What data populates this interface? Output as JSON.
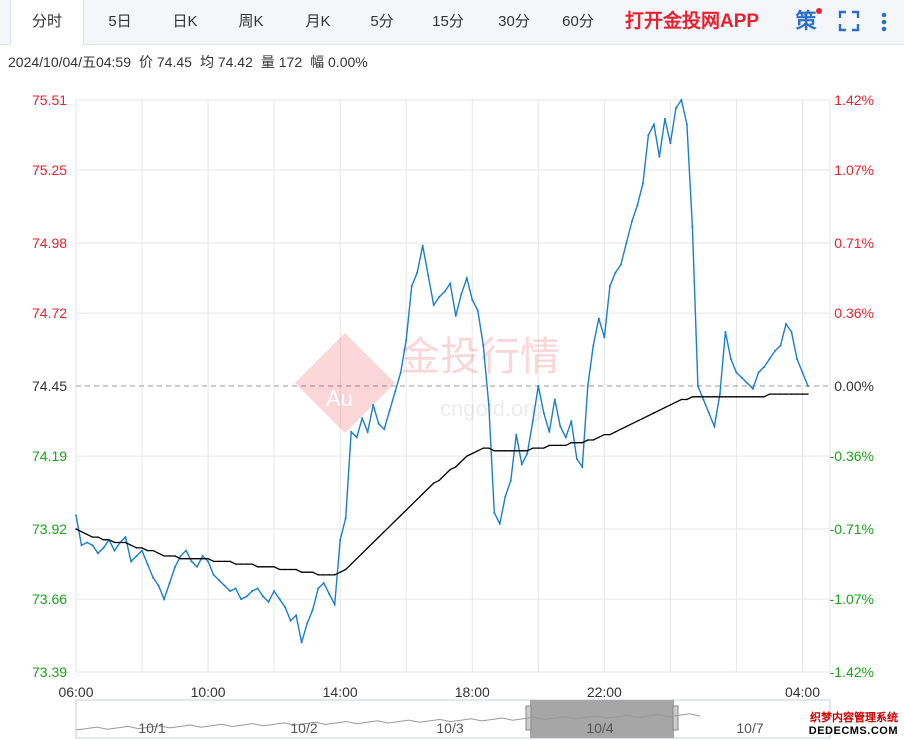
{
  "tabs": [
    {
      "label": "分时",
      "active": true
    },
    {
      "label": "5日"
    },
    {
      "label": "日K"
    },
    {
      "label": "周K"
    },
    {
      "label": "月K"
    },
    {
      "label": "5分"
    },
    {
      "label": "15分"
    },
    {
      "label": "30分"
    },
    {
      "label": "60分"
    }
  ],
  "promo": "打开金投网APP",
  "ce_label": "策",
  "info": {
    "datetime": "2024/10/04/五04:59",
    "price": "价 74.45",
    "avg": "均 74.42",
    "volume": "量 172",
    "change": "幅 0.00%"
  },
  "watermark": {
    "brand": "金投行情",
    "badge": "Au",
    "site": "cngold.org"
  },
  "corner": {
    "line1": "织梦内容管理系统",
    "line2": "DEDECMS.COM"
  },
  "colors": {
    "up": "#e8212e",
    "down": "#1aa31a",
    "price": "#1a7fc8",
    "avg": "#000000",
    "grid": "#e6e6e6"
  },
  "chart_data": {
    "type": "line",
    "ylim": [
      73.39,
      75.51
    ],
    "base": 74.45,
    "y_ticks": [
      75.51,
      75.25,
      74.98,
      74.72,
      74.45,
      74.19,
      73.92,
      73.66,
      73.39
    ],
    "pct_ticks": [
      "1.42%",
      "1.07%",
      "0.71%",
      "0.36%",
      "0.00%",
      "-0.36%",
      "-0.71%",
      "-1.07%",
      "-1.42%"
    ],
    "x_ticks": [
      "06:00",
      "10:00",
      "14:00",
      "18:00",
      "22:00",
      "04:00"
    ],
    "x_tick_index": [
      0,
      24,
      48,
      72,
      96,
      132
    ],
    "total_points": 138,
    "series": [
      {
        "name": "价",
        "values": [
          73.97,
          73.86,
          73.87,
          73.86,
          73.83,
          73.85,
          73.88,
          73.84,
          73.87,
          73.89,
          73.8,
          73.82,
          73.84,
          73.79,
          73.74,
          73.71,
          73.66,
          73.72,
          73.78,
          73.82,
          73.84,
          73.8,
          73.78,
          73.82,
          73.8,
          73.75,
          73.73,
          73.71,
          73.69,
          73.7,
          73.66,
          73.67,
          73.69,
          73.7,
          73.67,
          73.65,
          73.69,
          73.66,
          73.63,
          73.58,
          73.6,
          73.5,
          73.57,
          73.62,
          73.7,
          73.72,
          73.68,
          73.64,
          73.88,
          73.96,
          74.28,
          74.26,
          74.33,
          74.28,
          74.38,
          74.31,
          74.29,
          74.36,
          74.43,
          74.5,
          74.62,
          74.82,
          74.87,
          74.97,
          74.86,
          74.75,
          74.78,
          74.8,
          74.83,
          74.71,
          74.79,
          74.85,
          74.77,
          74.73,
          74.6,
          74.38,
          73.98,
          73.94,
          74.04,
          74.1,
          74.27,
          74.16,
          74.2,
          74.32,
          74.45,
          74.35,
          74.28,
          74.4,
          74.3,
          74.26,
          74.32,
          74.18,
          74.15,
          74.45,
          74.6,
          74.7,
          74.63,
          74.82,
          74.87,
          74.9,
          74.98,
          75.06,
          75.12,
          75.2,
          75.38,
          75.42,
          75.3,
          75.44,
          75.35,
          75.48,
          75.51,
          75.42,
          75.04,
          74.45,
          74.4,
          74.35,
          74.3,
          74.42,
          74.65,
          74.55,
          74.5,
          74.48,
          74.46,
          74.44,
          74.5,
          74.52,
          74.55,
          74.58,
          74.6,
          74.68,
          74.65,
          74.55,
          74.5,
          74.45
        ]
      },
      {
        "name": "均",
        "values": [
          73.92,
          73.91,
          73.9,
          73.89,
          73.89,
          73.88,
          73.88,
          73.87,
          73.87,
          73.87,
          73.86,
          73.85,
          73.85,
          73.84,
          73.84,
          73.83,
          73.82,
          73.82,
          73.82,
          73.81,
          73.81,
          73.81,
          73.81,
          73.81,
          73.81,
          73.8,
          73.8,
          73.8,
          73.8,
          73.79,
          73.79,
          73.79,
          73.79,
          73.78,
          73.78,
          73.78,
          73.78,
          73.77,
          73.77,
          73.77,
          73.77,
          73.76,
          73.76,
          73.76,
          73.75,
          73.75,
          73.75,
          73.75,
          73.76,
          73.77,
          73.79,
          73.81,
          73.83,
          73.85,
          73.87,
          73.89,
          73.91,
          73.93,
          73.95,
          73.97,
          73.99,
          74.01,
          74.03,
          74.05,
          74.07,
          74.09,
          74.1,
          74.12,
          74.14,
          74.15,
          74.17,
          74.19,
          74.2,
          74.21,
          74.22,
          74.22,
          74.21,
          74.21,
          74.21,
          74.21,
          74.21,
          74.21,
          74.21,
          74.22,
          74.22,
          74.22,
          74.23,
          74.23,
          74.23,
          74.23,
          74.24,
          74.24,
          74.24,
          74.25,
          74.25,
          74.26,
          74.27,
          74.27,
          74.28,
          74.29,
          74.3,
          74.31,
          74.32,
          74.33,
          74.34,
          74.35,
          74.36,
          74.37,
          74.38,
          74.39,
          74.4,
          74.4,
          74.41,
          74.41,
          74.41,
          74.41,
          74.41,
          74.41,
          74.41,
          74.41,
          74.41,
          74.41,
          74.41,
          74.41,
          74.41,
          74.41,
          74.42,
          74.42,
          74.42,
          74.42,
          74.42,
          74.42,
          74.42,
          74.42
        ]
      }
    ],
    "navigator": {
      "labels": [
        "10/1",
        "10/2",
        "10/3",
        "10/4",
        "10/7"
      ],
      "selected": "10/4"
    }
  }
}
